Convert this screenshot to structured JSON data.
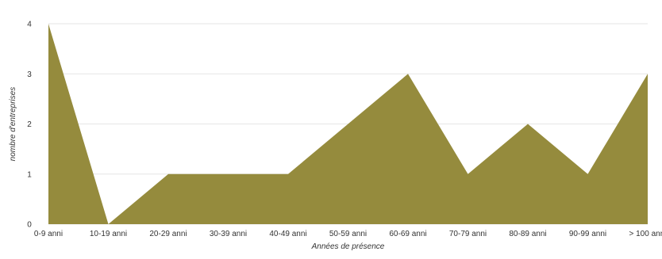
{
  "chart_data": {
    "type": "area",
    "categories": [
      "0-9 anni",
      "10-19 anni",
      "20-29 anni",
      "30-39 anni",
      "40-49 anni",
      "50-59 anni",
      "60-69 anni",
      "70-79 anni",
      "80-89 anni",
      "90-99 anni",
      "> 100 anni"
    ],
    "values": [
      4,
      0,
      1,
      1,
      1,
      2,
      3,
      1,
      2,
      1,
      3
    ],
    "xlabel": "Années de présence",
    "ylabel": "nombre d'entreprises",
    "ylim": [
      0,
      4
    ],
    "yticks": [
      "0",
      "1",
      "2",
      "3",
      "4"
    ],
    "grid": true,
    "colors": {
      "fill": "#958b3d",
      "grid": "#e6e6e6"
    }
  }
}
